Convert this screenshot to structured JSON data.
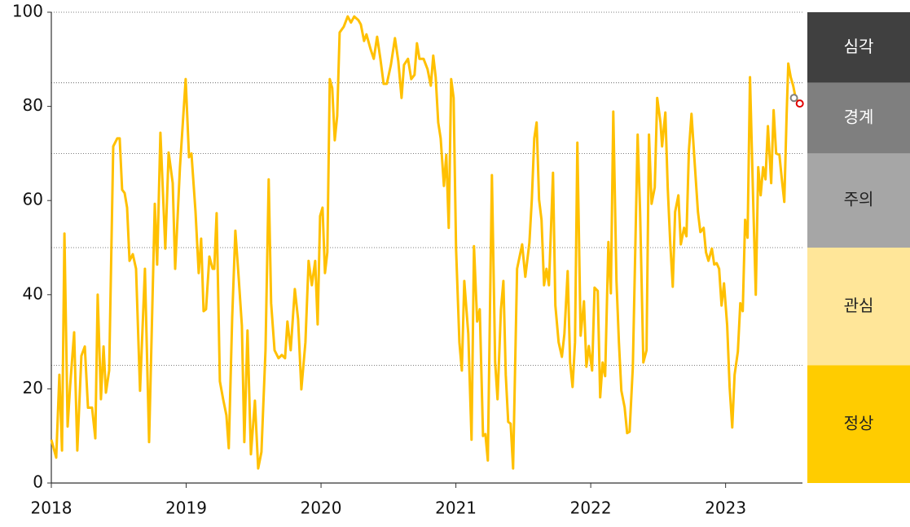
{
  "chart_data": {
    "type": "line",
    "xlim": [
      2018,
      2023.57
    ],
    "xticks": [
      2018,
      2019,
      2020,
      2021,
      2022,
      2023
    ],
    "ylim": [
      0,
      100
    ],
    "yticks": [
      0,
      20,
      40,
      60,
      80,
      100
    ],
    "x": [
      2018.0,
      2018.036,
      2018.06,
      2018.079,
      2018.097,
      2018.121,
      2018.139,
      2018.169,
      2018.193,
      2018.223,
      2018.248,
      2018.272,
      2018.302,
      2018.326,
      2018.344,
      2018.368,
      2018.387,
      2018.405,
      2018.429,
      2018.459,
      2018.489,
      2018.507,
      2018.525,
      2018.544,
      2018.562,
      2018.58,
      2018.604,
      2018.628,
      2018.658,
      2018.694,
      2018.725,
      2018.767,
      2018.785,
      2018.809,
      2018.845,
      2018.87,
      2018.9,
      2018.918,
      2018.954,
      2018.996,
      2019.021,
      2019.039,
      2019.069,
      2019.093,
      2019.111,
      2019.129,
      2019.147,
      2019.172,
      2019.196,
      2019.208,
      2019.226,
      2019.25,
      2019.274,
      2019.298,
      2019.316,
      2019.341,
      2019.365,
      2019.389,
      2019.413,
      2019.431,
      2019.455,
      2019.48,
      2019.51,
      2019.534,
      2019.558,
      2019.588,
      2019.612,
      2019.63,
      2019.655,
      2019.685,
      2019.709,
      2019.733,
      2019.751,
      2019.775,
      2019.806,
      2019.83,
      2019.854,
      2019.884,
      2019.908,
      2019.932,
      2019.957,
      2019.975,
      2019.993,
      2020.011,
      2020.029,
      2020.047,
      2020.065,
      2020.083,
      2020.102,
      2020.12,
      2020.138,
      2020.168,
      2020.198,
      2020.222,
      2020.246,
      2020.277,
      2020.295,
      2020.319,
      2020.337,
      2020.367,
      2020.391,
      2020.416,
      2020.44,
      2020.464,
      2020.488,
      2020.518,
      2020.548,
      2020.573,
      2020.597,
      2020.615,
      2020.645,
      2020.669,
      2020.693,
      2020.711,
      2020.73,
      2020.76,
      2020.79,
      2020.814,
      2020.832,
      2020.85,
      2020.869,
      2020.887,
      2020.911,
      2020.929,
      2020.947,
      2020.965,
      2020.983,
      2021.001,
      2021.026,
      2021.044,
      2021.062,
      2021.092,
      2021.116,
      2021.134,
      2021.158,
      2021.177,
      2021.201,
      2021.219,
      2021.237,
      2021.267,
      2021.291,
      2021.309,
      2021.334,
      2021.352,
      2021.37,
      2021.388,
      2021.406,
      2021.424,
      2021.454,
      2021.491,
      2021.515,
      2021.545,
      2021.563,
      2021.581,
      2021.599,
      2021.617,
      2021.635,
      2021.654,
      2021.672,
      2021.69,
      2021.72,
      2021.738,
      2021.762,
      2021.786,
      2021.805,
      2021.829,
      2021.847,
      2021.865,
      2021.883,
      2021.901,
      2021.925,
      2021.95,
      2021.968,
      2021.986,
      2022.01,
      2022.028,
      2022.052,
      2022.07,
      2022.088,
      2022.107,
      2022.131,
      2022.149,
      2022.167,
      2022.191,
      2022.209,
      2022.227,
      2022.251,
      2022.27,
      2022.288,
      2022.312,
      2022.336,
      2022.348,
      2022.366,
      2022.39,
      2022.414,
      2022.432,
      2022.451,
      2022.475,
      2022.493,
      2022.517,
      2022.529,
      2022.553,
      2022.571,
      2022.59,
      2022.608,
      2022.626,
      2022.65,
      2022.668,
      2022.692,
      2022.71,
      2022.728,
      2022.747,
      2022.771,
      2022.795,
      2022.813,
      2022.837,
      2022.855,
      2022.873,
      2022.898,
      2022.916,
      2022.934,
      2022.952,
      2022.97,
      2022.988,
      2023.012,
      2023.03,
      2023.049,
      2023.067,
      2023.091,
      2023.109,
      2023.127,
      2023.145,
      2023.163,
      2023.181,
      2023.205,
      2023.224,
      2023.242,
      2023.26,
      2023.278,
      2023.296,
      2023.314,
      2023.338,
      2023.356,
      2023.375,
      2023.399,
      2023.417,
      2023.435,
      2023.453,
      2023.465,
      2023.483,
      2023.501,
      2023.519,
      2023.55
    ],
    "series": [
      {
        "color": "#ffc000",
        "values": [
          9.2,
          5.4,
          23,
          6.9,
          53,
          12,
          20.4,
          32,
          6.9,
          27,
          29,
          16,
          16,
          9.5,
          40,
          17.8,
          29,
          19.2,
          23.9,
          71.5,
          73.2,
          73.2,
          62.3,
          61.6,
          58.5,
          47.2,
          48.6,
          45.5,
          19.6,
          45.5,
          8.7,
          59.3,
          46.4,
          74.4,
          49.8,
          70.2,
          63.7,
          45.5,
          67.1,
          85.8,
          69.2,
          70,
          57.6,
          44.6,
          51.9,
          36.5,
          36.9,
          48.1,
          45.5,
          45.5,
          57.3,
          21.6,
          17.8,
          14.4,
          7.4,
          35.1,
          53.6,
          43.8,
          33.4,
          8.7,
          32.4,
          6.1,
          17.5,
          3.1,
          6.6,
          28.2,
          64.5,
          38.2,
          28.2,
          26.5,
          27.2,
          26.5,
          34.3,
          28.2,
          41.2,
          34.8,
          19.9,
          29.9,
          47.2,
          42,
          47.2,
          33.7,
          56.7,
          58.5,
          44.6,
          49,
          85.8,
          83.9,
          72.8,
          78,
          95.7,
          96.9,
          99.1,
          97.8,
          99.1,
          98.3,
          97.4,
          93.9,
          95.3,
          92.2,
          90.1,
          94.8,
          90.1,
          84.8,
          84.8,
          88.8,
          94.5,
          89.6,
          81.8,
          88.8,
          90.1,
          85.8,
          86.7,
          93.4,
          90.1,
          90.1,
          87.9,
          84.4,
          90.8,
          86.2,
          76.6,
          73.2,
          63.1,
          69.7,
          54.2,
          85.8,
          81.8,
          49.8,
          29.9,
          23.9,
          42.9,
          31.7,
          9.2,
          50.3,
          34.3,
          36.9,
          10,
          10.4,
          4.8,
          65.4,
          25.6,
          17.8,
          36.9,
          42.9,
          23,
          13,
          12.6,
          3.1,
          45.5,
          50.7,
          43.8,
          51,
          60.2,
          73.2,
          76.6,
          60.2,
          55.9,
          42,
          45.5,
          42,
          65.9,
          37.7,
          29.9,
          26.8,
          31.7,
          45,
          25.6,
          20.4,
          29.9,
          72.3,
          31.3,
          38.6,
          24.7,
          29.1,
          23.9,
          41.5,
          40.8,
          18.2,
          25.6,
          22.7,
          51.2,
          40.3,
          78.9,
          42.9,
          29.9,
          19.6,
          16.1,
          10.6,
          10.9,
          24.7,
          57.3,
          74,
          57.6,
          25.6,
          28.2,
          74,
          59.3,
          62.8,
          81.8,
          76.6,
          71.5,
          78.7,
          62.8,
          50.7,
          41.7,
          57.6,
          61.1,
          50.7,
          54.2,
          52.4,
          70.6,
          78.4,
          68,
          57.6,
          53.3,
          54.2,
          49,
          47.2,
          49.8,
          46.4,
          46.7,
          45.5,
          37.7,
          42.4,
          33.4,
          20.4,
          11.8,
          23,
          27.9,
          38.2,
          36.5,
          55.9,
          52.1,
          86.2,
          59.3,
          40,
          67.1,
          61.1,
          67.1,
          64.5,
          75.8,
          63.7,
          79.2,
          70,
          69.7,
          64.5,
          59.7,
          78.4,
          89.1,
          86.2,
          84.4,
          81.8,
          80.6
        ]
      }
    ],
    "points": [
      {
        "x": 2023.507,
        "y": 81.8,
        "color": "#7f7f7f"
      },
      {
        "x": 2023.55,
        "y": 80.6,
        "color": "#e00000"
      }
    ],
    "zones": [
      {
        "label": "심각",
        "from": 85,
        "to": 100,
        "color": "#404040",
        "text_color": "#ffffff"
      },
      {
        "label": "경계",
        "from": 70,
        "to": 85,
        "color": "#7f7f7f",
        "text_color": "#ffffff"
      },
      {
        "label": "주의",
        "from": 50,
        "to": 70,
        "color": "#a6a6a6",
        "text_color": "#222222"
      },
      {
        "label": "관심",
        "from": 25,
        "to": 50,
        "color": "#ffe699",
        "text_color": "#222222"
      },
      {
        "label": "정상",
        "from": 0,
        "to": 25,
        "color": "#ffcc00",
        "text_color": "#222222"
      }
    ]
  }
}
